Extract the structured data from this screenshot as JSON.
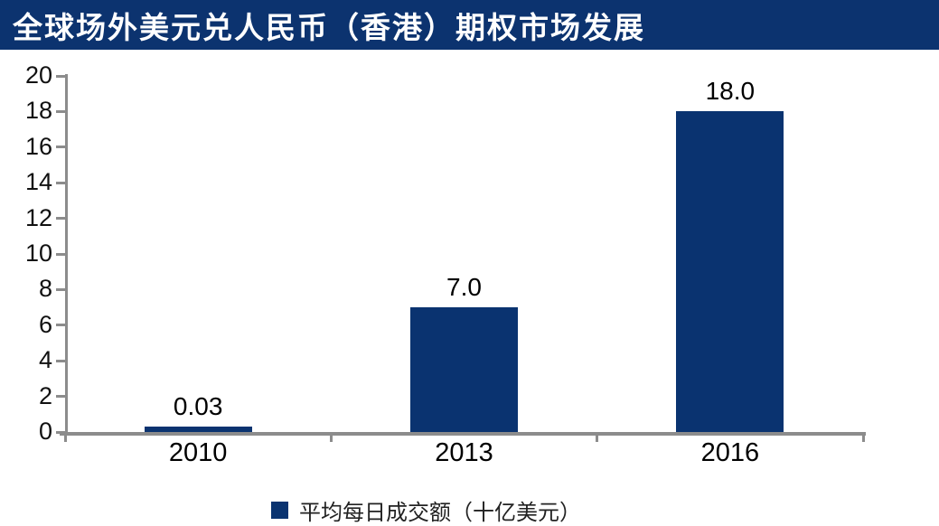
{
  "chart_data": {
    "type": "bar",
    "title": "全球场外美元兑人民币（香港）期权市场发展",
    "categories": [
      "2010",
      "2013",
      "2016"
    ],
    "values": [
      0.03,
      7.0,
      18.0
    ],
    "data_labels": [
      "0.03",
      "7.0",
      "18.0"
    ],
    "legend_label": "平均每日成交额（十亿美元）",
    "legend_position": "bottom",
    "xlabel": "",
    "ylabel": "",
    "ylim": [
      0,
      20
    ],
    "ytick_step": 2,
    "grid": false,
    "colors": {
      "bar": "#0a3370",
      "banner_bg": "#0c336f",
      "title_text": "#ffffff",
      "axis": "#8c8c8c",
      "tick_label_text": "#111111",
      "data_label_text": "#000000",
      "legend_text": "#222222"
    }
  }
}
